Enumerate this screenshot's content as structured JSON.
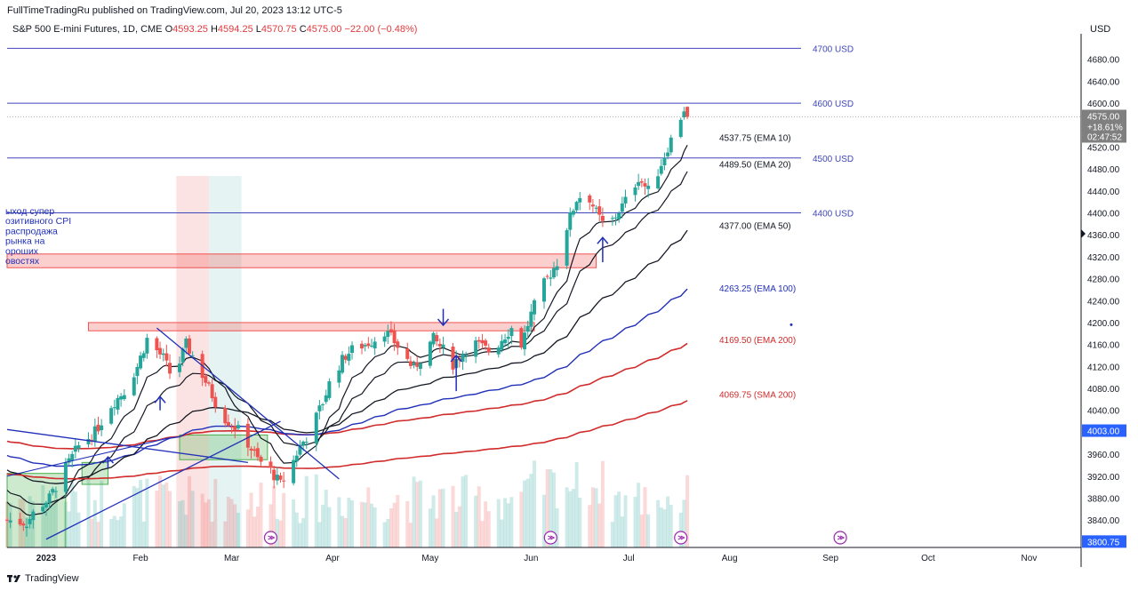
{
  "header": {
    "published": "FullTimeTradingRu published on TradingView.com, Jul 20, 2023 13:12 UTC-5",
    "symbol": "S&P 500 E-mini Futures, 1D, CME",
    "ohlc": [
      {
        "k": "O",
        "v": "4593.25"
      },
      {
        "k": "H",
        "v": "4594.25"
      },
      {
        "k": "L",
        "v": "4570.75"
      },
      {
        "k": "C",
        "v": "4575.00"
      }
    ],
    "change": "−22.00 (−0.48%)",
    "currency": "USD"
  },
  "footer": {
    "brand": "TradingView"
  },
  "colors": {
    "up": "#26a69a",
    "down": "#ef5350",
    "level": "#3f46b9",
    "ema_black": "#131722",
    "ema100": "#2130b8",
    "ema200": "#d12b2b",
    "sma200": "#d12b2b"
  },
  "chart_data": {
    "type": "candlestick",
    "y_axis": {
      "range": [
        3790,
        4720
      ],
      "ticks": [
        3840,
        3880,
        3920,
        3960,
        4040,
        4080,
        4120,
        4160,
        4200,
        4240,
        4280,
        4320,
        4360,
        4400,
        4440,
        4480,
        4520,
        4600,
        4640,
        4680
      ],
      "tick_labels": [
        "3840.00",
        "3880.00",
        "3920.00",
        "3960.00",
        "4040.00",
        "4080.00",
        "4120.00",
        "4160.00",
        "4200.00",
        "4240.00",
        "4280.00",
        "4320.00",
        "4360.00",
        "4400.00",
        "4440.00",
        "4480.00",
        "4520.00",
        "4600.00",
        "4640.00",
        "4680.00"
      ],
      "badges": [
        {
          "label": "4003.00",
          "value": 4003,
          "color": "#2962ff"
        },
        {
          "label": "3800.75",
          "value": 3800.75,
          "color": "#2962ff"
        }
      ],
      "last_price": {
        "label": "4575.00",
        "pct": "+18.61%",
        "countdown": "02:47:52",
        "value": 4575
      }
    },
    "x_axis": {
      "range_days": [
        -10,
        320
      ],
      "labels": [
        {
          "d": 2,
          "text": "2023",
          "bold": true
        },
        {
          "d": 31,
          "text": "Feb"
        },
        {
          "d": 59,
          "text": "Mar"
        },
        {
          "d": 90,
          "text": "Apr"
        },
        {
          "d": 120,
          "text": "May"
        },
        {
          "d": 151,
          "text": "Jun"
        },
        {
          "d": 181,
          "text": "Jul"
        },
        {
          "d": 212,
          "text": "Aug"
        },
        {
          "d": 243,
          "text": "Sep"
        },
        {
          "d": 273,
          "text": "Oct"
        },
        {
          "d": 304,
          "text": "Nov"
        }
      ]
    },
    "price_levels": [
      {
        "value": 4700,
        "label": "4700 USD"
      },
      {
        "value": 4600,
        "label": "4600 USD"
      },
      {
        "value": 4500,
        "label": "4500 USD"
      },
      {
        "value": 4400,
        "label": "4400 USD"
      }
    ],
    "ma_labels": [
      {
        "value": 4537.75,
        "label": "4537.75 (EMA 10)",
        "color": "#131722"
      },
      {
        "value": 4489.5,
        "label": "4489.50 (EMA 20)",
        "color": "#131722"
      },
      {
        "value": 4377.0,
        "label": "4377.00 (EMA 50)",
        "color": "#131722"
      },
      {
        "value": 4263.25,
        "label": "4263.25 (EMA 100)",
        "color": "#2130b8"
      },
      {
        "value": 4169.5,
        "label": "4169.50 (EMA 200)",
        "color": "#d12b2b"
      },
      {
        "value": 4069.75,
        "label": "4069.75 (SMA 200)",
        "color": "#d12b2b"
      }
    ],
    "annotation": {
      "lines": [
        "ыход супер",
        "озитивного CPI",
        "распродажа",
        "рынка на",
        "ороших",
        "овостях"
      ]
    },
    "zones": [
      {
        "d1": -10,
        "d2": 171,
        "y1": 4300,
        "y2": 4325,
        "color": "red"
      },
      {
        "d1": 15,
        "d2": 152,
        "y1": 4185,
        "y2": 4200,
        "color": "red"
      },
      {
        "d1": -10,
        "d2": 8,
        "y1": 3790,
        "y2": 3925,
        "color": "green"
      },
      {
        "d1": 13,
        "d2": 21,
        "y1": 3905,
        "y2": 3945,
        "color": "green"
      },
      {
        "d1": 43,
        "d2": 70,
        "y1": 3950,
        "y2": 3995,
        "color": "green"
      }
    ],
    "events_at_days": [
      71,
      157,
      197,
      246
    ]
  }
}
